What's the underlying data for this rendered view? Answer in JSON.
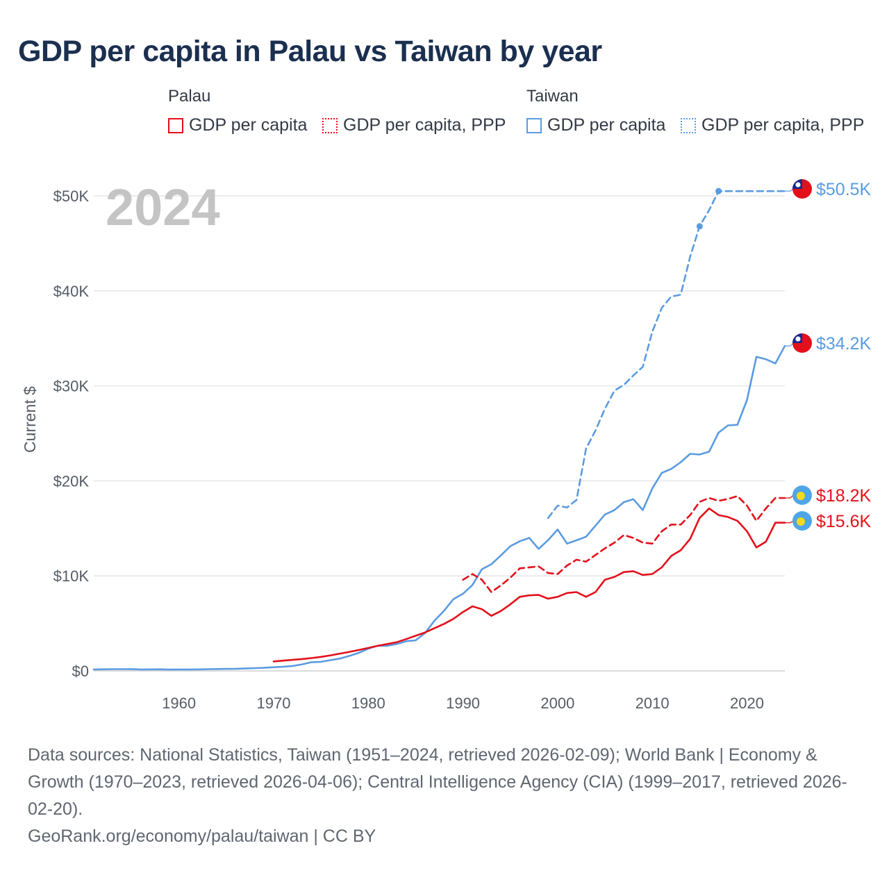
{
  "title": "GDP per capita in Palau vs Taiwan by year",
  "legend": {
    "groups": [
      {
        "name": "Palau",
        "items": [
          "GDP per capita",
          "GDP per capita, PPP"
        ]
      },
      {
        "name": "Taiwan",
        "items": [
          "GDP per capita",
          "GDP per capita, PPP"
        ]
      }
    ]
  },
  "colors": {
    "palau": "#e3101a",
    "taiwan": "#5a9be0"
  },
  "footer": {
    "sources": "Data sources: National Statistics, Taiwan (1951–2024, retrieved 2026-02-09); World Bank | Economy & Growth (1970–2023, retrieved 2026-04-06); Central Intelligence Agency (CIA) (1999–2017, retrieved 2026-02-20).",
    "credit": "GeoRank.org/economy/palau/taiwan | CC BY"
  },
  "chart_data": {
    "type": "line",
    "title": "GDP per capita in Palau vs Taiwan by year",
    "ylabel": "Current $",
    "xlabel": "",
    "xlim": [
      1951,
      2024
    ],
    "ylim": [
      0,
      52000
    ],
    "year_label": "2024",
    "x_ticks": [
      1960,
      1970,
      1980,
      1990,
      2000,
      2010,
      2020
    ],
    "y_ticks": [
      {
        "value": 0,
        "label": "$0"
      },
      {
        "value": 10000,
        "label": "$10K"
      },
      {
        "value": 20000,
        "label": "$20K"
      },
      {
        "value": 30000,
        "label": "$30K"
      },
      {
        "value": 40000,
        "label": "$40K"
      },
      {
        "value": 50000,
        "label": "$50K"
      }
    ],
    "series": [
      {
        "name": "Taiwan GDP per capita",
        "country": "Taiwan",
        "color": "#5a9be0",
        "dashed": false,
        "end_label": "$34.2K",
        "x": [
          1951,
          1952,
          1953,
          1954,
          1955,
          1956,
          1957,
          1958,
          1959,
          1960,
          1961,
          1962,
          1963,
          1964,
          1965,
          1966,
          1967,
          1968,
          1969,
          1970,
          1971,
          1972,
          1973,
          1974,
          1975,
          1976,
          1977,
          1978,
          1979,
          1980,
          1981,
          1982,
          1983,
          1984,
          1985,
          1986,
          1987,
          1988,
          1989,
          1990,
          1991,
          1992,
          1993,
          1994,
          1995,
          1996,
          1997,
          1998,
          1999,
          2000,
          2001,
          2002,
          2003,
          2004,
          2005,
          2006,
          2007,
          2008,
          2009,
          2010,
          2011,
          2012,
          2013,
          2014,
          2015,
          2016,
          2017,
          2018,
          2019,
          2020,
          2021,
          2022,
          2023,
          2024
        ],
        "values": [
          150,
          170,
          180,
          180,
          190,
          150,
          160,
          170,
          140,
          150,
          150,
          160,
          180,
          200,
          210,
          230,
          260,
          290,
          330,
          390,
          440,
          520,
          690,
          920,
          960,
          1130,
          1300,
          1580,
          1900,
          2340,
          2660,
          2640,
          2820,
          3130,
          3220,
          3990,
          5300,
          6330,
          7560,
          8120,
          9040,
          10700,
          11230,
          12150,
          13120,
          13650,
          14000,
          12840,
          13770,
          14880,
          13400,
          13750,
          14120,
          15290,
          16460,
          16930,
          17760,
          18080,
          16930,
          19200,
          20840,
          21260,
          21970,
          22840,
          22780,
          23070,
          25080,
          25840,
          25910,
          28510,
          33060,
          32810,
          32360,
          34200
        ]
      },
      {
        "name": "Taiwan GDP per capita, PPP",
        "country": "Taiwan",
        "color": "#5a9be0",
        "dashed": true,
        "end_label": "$50.5K",
        "x": [
          1999,
          2000,
          2001,
          2002,
          2003,
          2004,
          2005,
          2006,
          2007,
          2008,
          2009,
          2010,
          2011,
          2012,
          2013,
          2014,
          2015,
          2016,
          2017,
          2024
        ],
        "values": [
          16100,
          17400,
          17200,
          18000,
          23400,
          25300,
          27600,
          29500,
          30100,
          31100,
          32000,
          35700,
          38200,
          39400,
          39600,
          43600,
          46800,
          48500,
          50500,
          50500
        ]
      },
      {
        "name": "Palau GDP per capita",
        "country": "Palau",
        "color": "#e3101a",
        "dashed": false,
        "end_label": "$15.6K",
        "x": [
          1970,
          1971,
          1972,
          1973,
          1974,
          1975,
          1976,
          1977,
          1978,
          1979,
          1980,
          1981,
          1982,
          1983,
          1984,
          1985,
          1986,
          1987,
          1988,
          1989,
          1990,
          1991,
          1992,
          1993,
          1994,
          1995,
          1996,
          1997,
          1998,
          1999,
          2000,
          2001,
          2002,
          2003,
          2004,
          2005,
          2006,
          2007,
          2008,
          2009,
          2010,
          2011,
          2012,
          2013,
          2014,
          2015,
          2016,
          2017,
          2018,
          2019,
          2020,
          2021,
          2022,
          2023,
          2024
        ],
        "values": [
          1000,
          1080,
          1160,
          1250,
          1350,
          1480,
          1640,
          1820,
          2000,
          2200,
          2420,
          2640,
          2830,
          3020,
          3350,
          3700,
          4050,
          4500,
          4950,
          5480,
          6200,
          6800,
          6500,
          5800,
          6300,
          7000,
          7800,
          7950,
          8000,
          7600,
          7800,
          8200,
          8300,
          7800,
          8300,
          9600,
          9900,
          10400,
          10500,
          10100,
          10200,
          10900,
          12100,
          12700,
          13900,
          16100,
          17100,
          16400,
          16200,
          15800,
          14700,
          13000,
          13600,
          15600,
          15600
        ]
      },
      {
        "name": "Palau GDP per capita, PPP",
        "country": "Palau",
        "color": "#e3101a",
        "dashed": true,
        "end_label": "$18.2K",
        "x": [
          1990,
          1991,
          1992,
          1993,
          1994,
          1995,
          1996,
          1997,
          1998,
          1999,
          2000,
          2001,
          2002,
          2003,
          2004,
          2005,
          2006,
          2007,
          2008,
          2009,
          2010,
          2011,
          2012,
          2013,
          2014,
          2015,
          2016,
          2017,
          2018,
          2019,
          2020,
          2021,
          2022,
          2023,
          2024
        ],
        "values": [
          9600,
          10200,
          9600,
          8300,
          9000,
          9800,
          10800,
          10900,
          11000,
          10300,
          10200,
          11100,
          11700,
          11500,
          12200,
          12900,
          13500,
          14300,
          14000,
          13500,
          13400,
          14700,
          15400,
          15400,
          16400,
          17800,
          18200,
          17900,
          18100,
          18400,
          17400,
          15800,
          17100,
          18200,
          18200
        ]
      }
    ],
    "markers": [
      {
        "series": "Taiwan GDP per capita, PPP",
        "x": 2015,
        "value": 46800
      },
      {
        "series": "Taiwan GDP per capita, PPP",
        "x": 2017,
        "value": 50500
      }
    ]
  }
}
